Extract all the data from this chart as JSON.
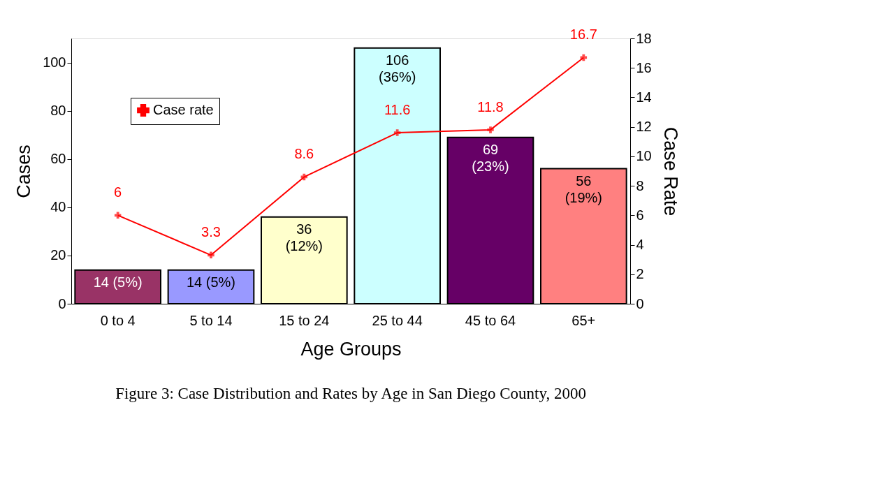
{
  "chart_data": {
    "type": "bar",
    "title": "Figure 3: Case Distribution and Rates by Age in San Diego County, 2000",
    "xlabel": "Age Groups",
    "ylabel": "Cases",
    "y2label": "Case Rate",
    "categories": [
      "0 to 4",
      "5 to 14",
      "15 to 24",
      "25 to 44",
      "45 to 64",
      "65+"
    ],
    "series": [
      {
        "colors": [
          "#993366",
          "#9999ff",
          "#ffffcc",
          "#ccffff",
          "#660066",
          "#ff8080"
        ],
        "values": [
          14,
          14,
          36,
          106,
          69,
          56
        ],
        "value_labels": [
          "14 (5%)",
          "14 (5%)",
          "36\n(12%)",
          "106\n(36%)",
          "69\n(23%)",
          "56\n(19%)"
        ]
      },
      {
        "type": "line",
        "name": "Case rate",
        "axis": "y2",
        "color": "#ff0000",
        "marker": "cross",
        "line_style": "solid",
        "values": [
          6,
          3.3,
          8.6,
          11.6,
          11.8,
          16.7
        ],
        "value_labels": [
          "6",
          "3.3",
          "8.6",
          "11.6",
          "11.8",
          "16.7"
        ]
      }
    ],
    "ylim": [
      0,
      110
    ],
    "yticks": [
      0,
      20,
      40,
      60,
      80,
      100
    ],
    "y2lim": [
      0,
      18
    ],
    "y2ticks": [
      0,
      2,
      4,
      6,
      8,
      10,
      12,
      14,
      16,
      18
    ],
    "grid": false,
    "legend": "top left"
  }
}
